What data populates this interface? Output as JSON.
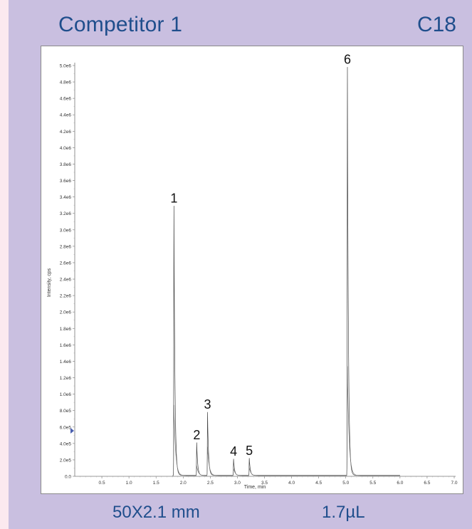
{
  "header": {
    "left": "Competitor 1",
    "right": "C18"
  },
  "footer": {
    "left": "50X2.1 mm",
    "right": "1.7µL"
  },
  "chart_data": {
    "type": "line",
    "xlabel": "Time, min",
    "ylabel": "Intensity, cps",
    "xlim": [
      0,
      7.0
    ],
    "ylim": [
      0,
      5000000
    ],
    "x_ticks": [
      "0.5",
      "1.0",
      "1.5",
      "2.0",
      "2.5",
      "3.0",
      "3.5",
      "4.0",
      "4.5",
      "5.0",
      "5.5",
      "6.0",
      "6.5",
      "7.0"
    ],
    "x_tick_values": [
      0.5,
      1.0,
      1.5,
      2.0,
      2.5,
      3.0,
      3.5,
      4.0,
      4.5,
      5.0,
      5.5,
      6.0,
      6.5,
      7.0
    ],
    "y_ticks": [
      "0.0",
      "2.0e5",
      "4.0e5",
      "6.0e5",
      "8.0e5",
      "1.0e6",
      "1.2e6",
      "1.4e6",
      "1.6e6",
      "1.8e6",
      "2.0e6",
      "2.2e6",
      "2.4e6",
      "2.6e6",
      "2.8e6",
      "3.0e6",
      "3.2e6",
      "3.4e6",
      "3.6e6",
      "3.8e6",
      "4.0e6",
      "4.2e6",
      "4.4e6",
      "4.6e6",
      "4.8e6",
      "5.0e6"
    ],
    "y_tick_values": [
      0,
      200000,
      400000,
      600000,
      800000,
      1000000,
      1200000,
      1400000,
      1600000,
      1800000,
      2000000,
      2200000,
      2400000,
      2600000,
      2800000,
      3000000,
      3200000,
      3400000,
      3600000,
      3800000,
      4000000,
      4200000,
      4400000,
      4600000,
      4800000,
      5000000
    ],
    "peaks": [
      {
        "label": "1",
        "time": 1.83,
        "heights": [
          3280000,
          860000
        ]
      },
      {
        "label": "2",
        "time": 2.25,
        "heights": [
          400000,
          120000
        ]
      },
      {
        "label": "3",
        "time": 2.45,
        "heights": [
          770000,
          350000
        ]
      },
      {
        "label": "4",
        "time": 2.93,
        "heights": [
          200000,
          90000
        ]
      },
      {
        "label": "5",
        "time": 3.22,
        "heights": [
          210000,
          100000
        ]
      },
      {
        "label": "6",
        "time": 5.03,
        "heights": [
          4970000,
          1330000
        ]
      }
    ],
    "trace_end": 6.0,
    "grid": false,
    "legend": "none"
  }
}
